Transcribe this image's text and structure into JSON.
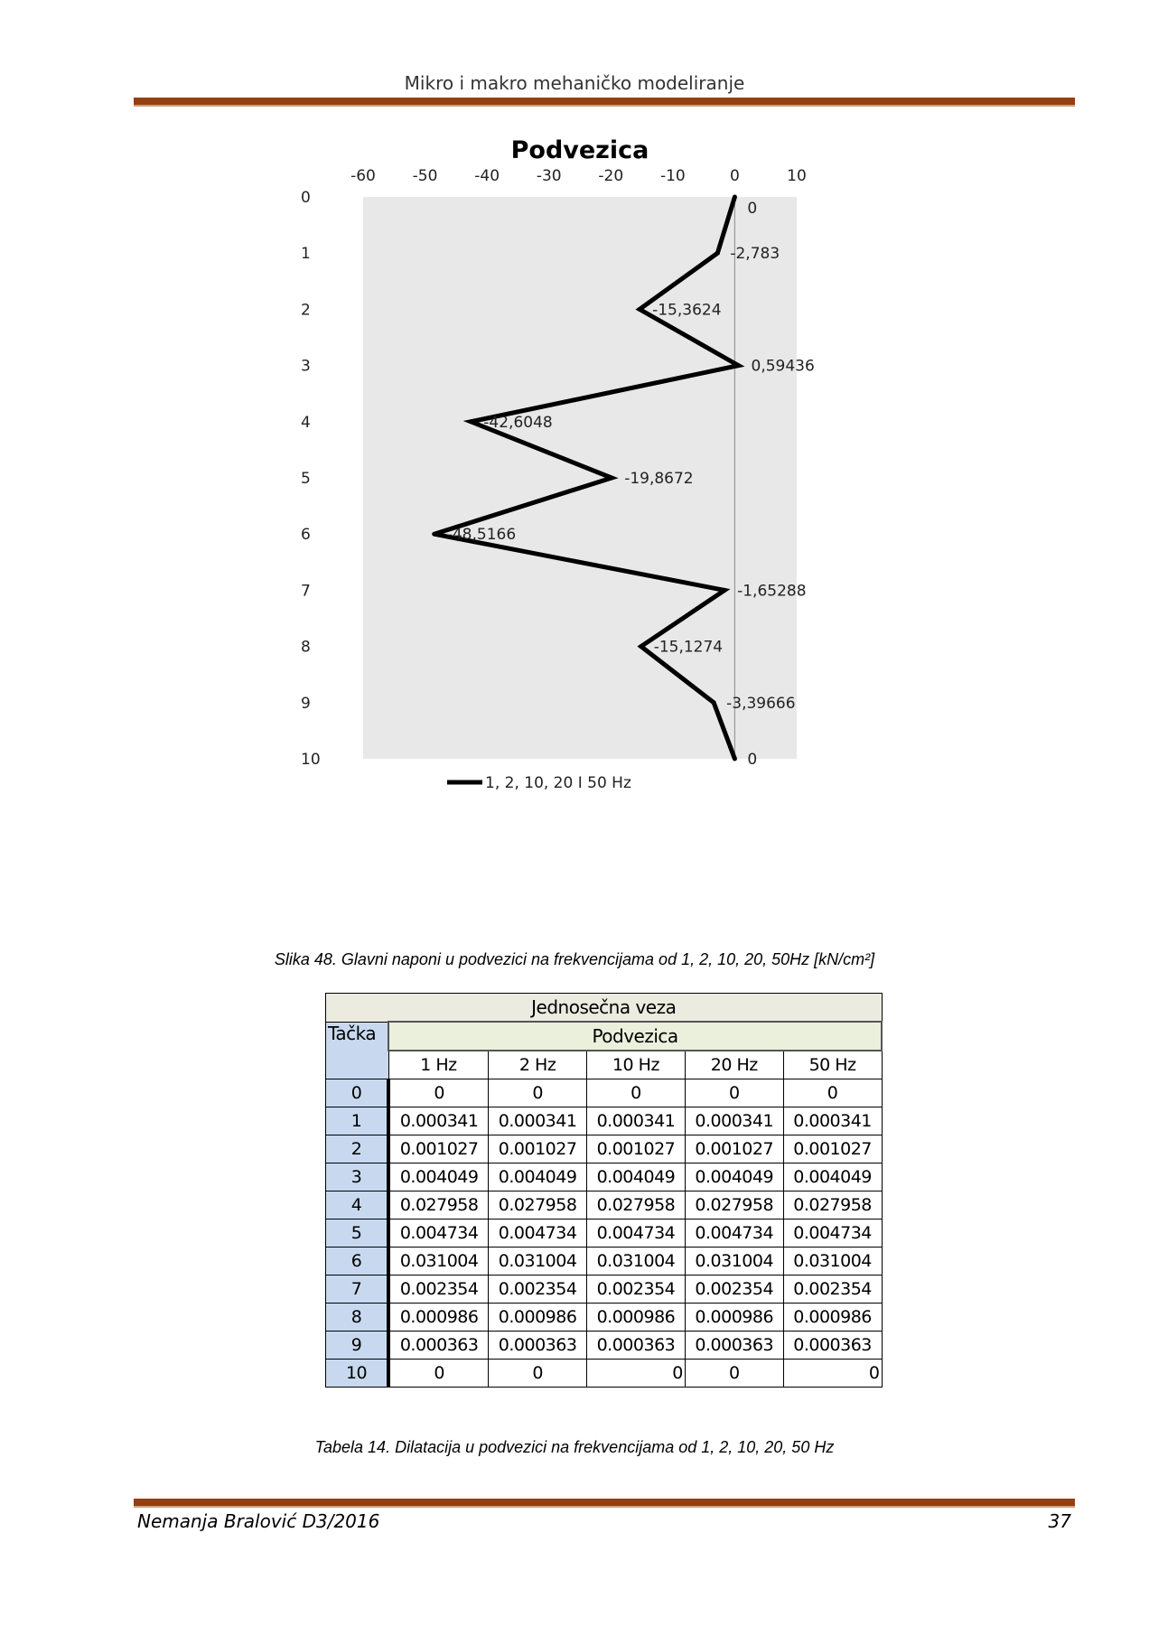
{
  "header": {
    "title": "Mikro i makro mehaničko modeliranje"
  },
  "chart_data": {
    "type": "line",
    "title": "Podvezica",
    "x_ticks": [
      "-60",
      "-50",
      "-40",
      "-30",
      "-20",
      "-10",
      "0",
      "10"
    ],
    "y_ticks": [
      "0",
      "1",
      "2",
      "3",
      "4",
      "5",
      "6",
      "7",
      "8",
      "9",
      "10"
    ],
    "xlim": [
      -60,
      10
    ],
    "ylim": [
      0,
      10
    ],
    "y_inverted": true,
    "x_axis_position": "top",
    "legend_position": "bottom",
    "series": [
      {
        "name": "1, 2, 10, 20 I 50 Hz",
        "color": "#000000",
        "points": [
          {
            "x": 0,
            "y": 0,
            "label": "0"
          },
          {
            "x": -2.783,
            "y": 1,
            "label": "-2,783"
          },
          {
            "x": -15.3624,
            "y": 2,
            "label": "-15,3624"
          },
          {
            "x": 0.59436,
            "y": 3,
            "label": "0,59436"
          },
          {
            "x": -42.6048,
            "y": 4,
            "label": "-42,6048"
          },
          {
            "x": -19.8672,
            "y": 5,
            "label": "-19,8672"
          },
          {
            "x": -48.5166,
            "y": 6,
            "label": "-48,5166"
          },
          {
            "x": -1.65288,
            "y": 7,
            "label": "-1,65288"
          },
          {
            "x": -15.1274,
            "y": 8,
            "label": "-15,1274"
          },
          {
            "x": -3.39666,
            "y": 9,
            "label": "-3,39666"
          },
          {
            "x": 0,
            "y": 10,
            "label": "0"
          }
        ]
      }
    ],
    "plot_background": "#e8e8e8"
  },
  "figure_caption": "Slika 48. Glavni naponi u podvezici na frekvencijama od 1, 2, 10, 20, 50Hz  [kN/cm²]",
  "table": {
    "caption_top": "Jednosečna veza",
    "row_header": "Tačka",
    "group_header": "Podvezica",
    "columns": [
      "1 Hz",
      "2 Hz",
      "10 Hz",
      "20 Hz",
      "50 Hz"
    ],
    "rows": [
      {
        "point": "0",
        "values": [
          "0",
          "0",
          "0",
          "0",
          "0"
        ]
      },
      {
        "point": "1",
        "values": [
          "0.000341",
          "0.000341",
          "0.000341",
          "0.000341",
          "0.000341"
        ]
      },
      {
        "point": "2",
        "values": [
          "0.001027",
          "0.001027",
          "0.001027",
          "0.001027",
          "0.001027"
        ]
      },
      {
        "point": "3",
        "values": [
          "0.004049",
          "0.004049",
          "0.004049",
          "0.004049",
          "0.004049"
        ]
      },
      {
        "point": "4",
        "values": [
          "0.027958",
          "0.027958",
          "0.027958",
          "0.027958",
          "0.027958"
        ]
      },
      {
        "point": "5",
        "values": [
          "0.004734",
          "0.004734",
          "0.004734",
          "0.004734",
          "0.004734"
        ]
      },
      {
        "point": "6",
        "values": [
          "0.031004",
          "0.031004",
          "0.031004",
          "0.031004",
          "0.031004"
        ]
      },
      {
        "point": "7",
        "values": [
          "0.002354",
          "0.002354",
          "0.002354",
          "0.002354",
          "0.002354"
        ]
      },
      {
        "point": "8",
        "values": [
          "0.000986",
          "0.000986",
          "0.000986",
          "0.000986",
          "0.000986"
        ]
      },
      {
        "point": "9",
        "values": [
          "0.000363",
          "0.000363",
          "0.000363",
          "0.000363",
          "0.000363"
        ]
      },
      {
        "point": "10",
        "values": [
          "0",
          "0",
          "0",
          "0",
          "0"
        ]
      }
    ]
  },
  "table_caption": "Tabela 14. Dilatacija u podvezici na frekvencijama od 1, 2, 10, 20, 50 Hz",
  "footer": {
    "author": "Nemanja Bralović D3/2016",
    "page": "37"
  }
}
